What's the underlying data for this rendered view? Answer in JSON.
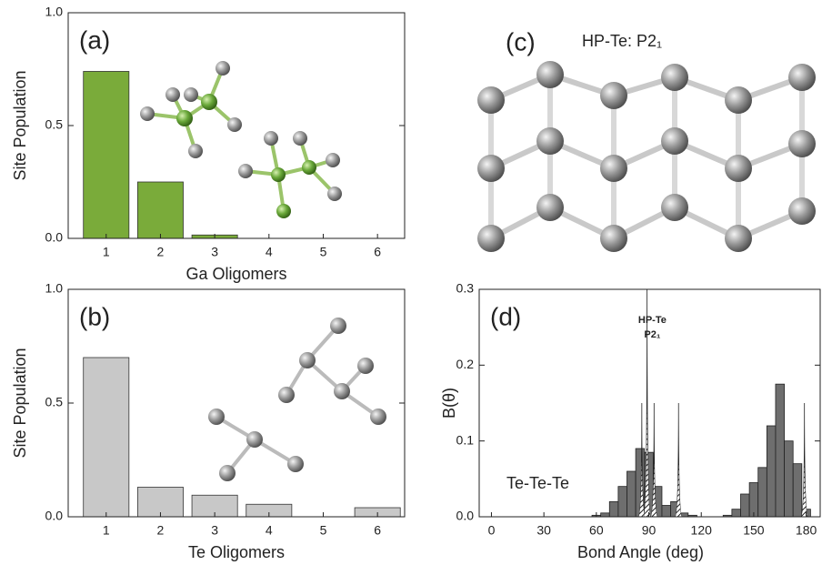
{
  "chart_data": [
    {
      "type": "bar",
      "label": "(a)",
      "xlabel": "Ga Oligomers",
      "ylabel": "Site Population",
      "categories": [
        "1",
        "2",
        "3",
        "4",
        "5",
        "6"
      ],
      "values": [
        0.74,
        0.25,
        0.015,
        0,
        0,
        0
      ],
      "color": "#7aab3a",
      "ylim": [
        0,
        1
      ],
      "yticks": [
        {
          "value": 0,
          "label": "0.0"
        },
        {
          "value": 0.5,
          "label": "0.5"
        },
        {
          "value": 1,
          "label": "1.0"
        }
      ]
    },
    {
      "type": "bar",
      "label": "(b)",
      "xlabel": "Te Oligomers",
      "ylabel": "Site Population",
      "categories": [
        "1",
        "2",
        "3",
        "4",
        "5",
        "6"
      ],
      "values": [
        0.7,
        0.13,
        0.095,
        0.055,
        0,
        0.04
      ],
      "color": "#c8c8c8",
      "ylim": [
        0,
        1
      ],
      "yticks": [
        {
          "value": 0,
          "label": "0.0"
        },
        {
          "value": 0.5,
          "label": "0.5"
        },
        {
          "value": 1,
          "label": "1.0"
        }
      ]
    },
    {
      "type": "histogram",
      "label": "(d)",
      "xlabel": "Bond Angle (deg)",
      "ylabel": "B(θ)",
      "annotation": "Te-Te-Te",
      "peak_label": [
        "HP-Te",
        "P2₁"
      ],
      "bins": [
        57.5,
        62.5,
        67.5,
        72.5,
        77.5,
        82.5,
        87.5,
        92.5,
        97.5,
        102.5,
        107.5,
        112.5,
        117.5,
        122.5,
        127.5,
        132.5,
        137.5,
        142.5,
        147.5,
        152.5,
        157.5,
        162.5,
        167.5,
        172.5,
        177.5,
        182.5
      ],
      "values": [
        0.002,
        0.005,
        0.02,
        0.04,
        0.06,
        0.09,
        0.085,
        0.04,
        0.015,
        0.02,
        0.005,
        0.002,
        0,
        0,
        0,
        0.002,
        0.01,
        0.03,
        0.045,
        0.065,
        0.12,
        0.175,
        0.1,
        0.07,
        0.01
      ],
      "color": "#6e6e6e",
      "peaks": {
        "x": [
          86,
          89,
          93,
          107,
          179
        ],
        "values": [
          0.15,
          0.3,
          0.15,
          0.15,
          0.15
        ]
      },
      "xlim": [
        -7,
        188
      ],
      "xticks": [
        0,
        30,
        60,
        90,
        120,
        150,
        180
      ],
      "ylim": [
        0,
        0.3
      ],
      "yticks": [
        {
          "value": 0,
          "label": "0.0"
        },
        {
          "value": 0.1,
          "label": "0.1"
        },
        {
          "value": 0.2,
          "label": "0.2"
        },
        {
          "value": 0.3,
          "label": "0.3"
        }
      ]
    }
  ],
  "panel_c": {
    "label": "(c)",
    "title": "HP-Te: P2₁"
  }
}
